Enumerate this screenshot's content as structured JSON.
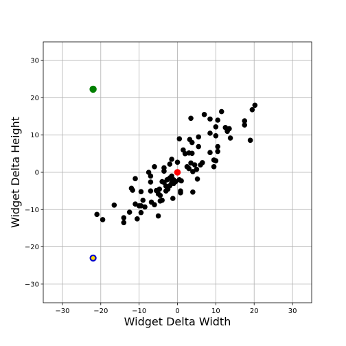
{
  "chart_data": {
    "type": "scatter",
    "title": "",
    "xlabel": "Widget Delta Width",
    "ylabel": "Widget Delta Height",
    "xlim": [
      -35,
      35
    ],
    "ylim": [
      -35,
      35
    ],
    "xticks": [
      -30,
      -20,
      -10,
      0,
      10,
      20,
      30
    ],
    "yticks": [
      -30,
      -20,
      -10,
      0,
      10,
      20,
      30
    ],
    "grid": true,
    "colors": {
      "points": "#000000",
      "origin": "#ff0000",
      "outlier_top": "#008000",
      "outlier_bottom_ring": "#0000cc",
      "outlier_bottom_center": "#ffd700",
      "grid": "#b0b0b0"
    },
    "series": [
      {
        "values": [
          [
            -21,
            -11.3
          ],
          [
            -19.5,
            -12.7
          ],
          [
            -16.5,
            -8.8
          ],
          [
            -14,
            -12.2
          ],
          [
            -14,
            -13.5
          ],
          [
            -12.5,
            -10.7
          ],
          [
            -12,
            -4.3
          ],
          [
            -11.7,
            -4.8
          ],
          [
            -11,
            -1.7
          ],
          [
            -11,
            -8.5
          ],
          [
            -10.5,
            -12.5
          ],
          [
            -10,
            -9
          ],
          [
            -9.5,
            -9
          ],
          [
            -9.5,
            -5.2
          ],
          [
            -9,
            -7.5
          ],
          [
            -9.5,
            -10.8
          ],
          [
            -8.5,
            -9.3
          ],
          [
            -7.5,
            0
          ],
          [
            -7,
            -1
          ],
          [
            -7,
            -2.6
          ],
          [
            -7,
            -5
          ],
          [
            -6.8,
            -8
          ],
          [
            -6,
            1.5
          ],
          [
            -6,
            -8.7
          ],
          [
            -5.5,
            -4.9
          ],
          [
            -5,
            -5.8
          ],
          [
            -5,
            -11.7
          ],
          [
            -4.7,
            -4.5
          ],
          [
            -4.5,
            -7.7
          ],
          [
            -4.5,
            -6.2
          ],
          [
            -4,
            -2.5
          ],
          [
            -4,
            -7.5
          ],
          [
            -3.5,
            1.2
          ],
          [
            -3.5,
            0.3
          ],
          [
            -3.5,
            -2.7
          ],
          [
            -3,
            -5
          ],
          [
            -3,
            -3.7
          ],
          [
            -2.7,
            -2
          ],
          [
            -2.5,
            -4.5
          ],
          [
            -2,
            -1.5
          ],
          [
            -2,
            2.2
          ],
          [
            -2,
            -3.6
          ],
          [
            -1.5,
            3.5
          ],
          [
            -1.5,
            -1
          ],
          [
            -1.5,
            -2.7
          ],
          [
            -1.2,
            -7
          ],
          [
            -1,
            -2
          ],
          [
            -1,
            -3
          ],
          [
            -0.5,
            -2.5
          ],
          [
            0,
            2.7
          ],
          [
            0.5,
            -2
          ],
          [
            0.5,
            9
          ],
          [
            0.8,
            -5.5
          ],
          [
            0.8,
            -5
          ],
          [
            1,
            -2.3
          ],
          [
            1.5,
            6
          ],
          [
            2,
            5
          ],
          [
            2.5,
            1.5
          ],
          [
            3,
            1
          ],
          [
            3,
            5.2
          ],
          [
            3.2,
            8.8
          ],
          [
            3.5,
            14.5
          ],
          [
            3.5,
            2.5
          ],
          [
            3.8,
            8
          ],
          [
            3.8,
            5.1
          ],
          [
            4,
            -5.3
          ],
          [
            4,
            0.2
          ],
          [
            4.5,
            2
          ],
          [
            5,
            0.8
          ],
          [
            5.2,
            -1.8
          ],
          [
            5.5,
            9.5
          ],
          [
            5.5,
            6.9
          ],
          [
            6,
            2
          ],
          [
            6.5,
            2.6
          ],
          [
            7,
            15.5
          ],
          [
            8.5,
            10.5
          ],
          [
            8.5,
            14.3
          ],
          [
            8.5,
            5.3
          ],
          [
            9.5,
            1.5
          ],
          [
            9.5,
            3.3
          ],
          [
            10,
            3.1
          ],
          [
            10,
            12.2
          ],
          [
            10,
            9.8
          ],
          [
            10.5,
            14
          ],
          [
            10.5,
            5.6
          ],
          [
            10.5,
            6.9
          ],
          [
            11.5,
            16.3
          ],
          [
            12.5,
            12
          ],
          [
            13,
            11
          ],
          [
            13.5,
            11.7
          ],
          [
            13.8,
            9.2
          ],
          [
            17.5,
            12.7
          ],
          [
            17.5,
            13.8
          ],
          [
            19,
            8.6
          ],
          [
            19.5,
            16.8
          ],
          [
            20.2,
            18
          ]
        ]
      }
    ],
    "highlighted_points": [
      {
        "role": "origin",
        "x": 0,
        "y": 0
      },
      {
        "role": "outlier-top",
        "x": -22,
        "y": 22.3
      },
      {
        "role": "outlier-bottom",
        "x": -22,
        "y": -23
      }
    ]
  }
}
